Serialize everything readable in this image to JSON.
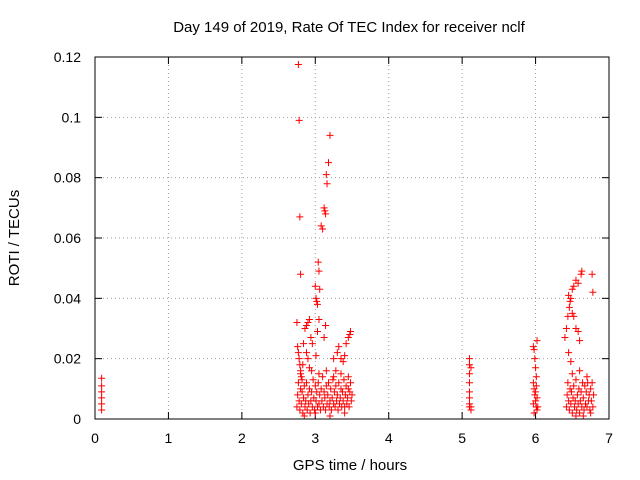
{
  "chart_data": {
    "type": "scatter",
    "title": "Day 149 of 2019, Rate Of TEC Index for receiver nclf",
    "xlabel": "GPS time / hours",
    "ylabel": "ROTI / TECUs",
    "xlim": [
      0,
      7
    ],
    "ylim": [
      0,
      0.12
    ],
    "x_ticks": [
      "0",
      "1",
      "2",
      "3",
      "4",
      "5",
      "6",
      "7"
    ],
    "y_ticks": [
      "0",
      "0.02",
      "0.04",
      "0.06",
      "0.08",
      "0.1",
      "0.12"
    ],
    "grid": true,
    "marker": "+",
    "color": "#ff0000",
    "series": [
      {
        "name": "ROTI",
        "points": [
          [
            0.09,
            0.003
          ],
          [
            0.09,
            0.005
          ],
          [
            0.09,
            0.007
          ],
          [
            0.09,
            0.009
          ],
          [
            0.09,
            0.011
          ],
          [
            0.09,
            0.0135
          ],
          [
            2.77,
            0.1175
          ],
          [
            2.78,
            0.099
          ],
          [
            2.79,
            0.067
          ],
          [
            2.8,
            0.048
          ],
          [
            2.75,
            0.032
          ],
          [
            2.76,
            0.024
          ],
          [
            2.77,
            0.022
          ],
          [
            2.78,
            0.02
          ],
          [
            2.79,
            0.018
          ],
          [
            2.8,
            0.016
          ],
          [
            2.81,
            0.014
          ],
          [
            2.82,
            0.013
          ],
          [
            2.83,
            0.018
          ],
          [
            2.84,
            0.025
          ],
          [
            2.86,
            0.03
          ],
          [
            2.88,
            0.031
          ],
          [
            2.9,
            0.032
          ],
          [
            2.92,
            0.033
          ],
          [
            2.88,
            0.022
          ],
          [
            2.9,
            0.02
          ],
          [
            2.92,
            0.017
          ],
          [
            2.94,
            0.027
          ],
          [
            2.96,
            0.025
          ],
          [
            3.0,
            0.044
          ],
          [
            3.01,
            0.04
          ],
          [
            3.02,
            0.039
          ],
          [
            3.03,
            0.038
          ],
          [
            3.04,
            0.052
          ],
          [
            3.05,
            0.049
          ],
          [
            3.06,
            0.043
          ],
          [
            3.05,
            0.033
          ],
          [
            3.03,
            0.029
          ],
          [
            3.01,
            0.021
          ],
          [
            3.08,
            0.064
          ],
          [
            3.1,
            0.063
          ],
          [
            3.12,
            0.07
          ],
          [
            3.13,
            0.069
          ],
          [
            3.14,
            0.068
          ],
          [
            3.15,
            0.081
          ],
          [
            3.16,
            0.078
          ],
          [
            3.18,
            0.085
          ],
          [
            3.2,
            0.094
          ],
          [
            3.14,
            0.031
          ],
          [
            3.12,
            0.027
          ],
          [
            3.25,
            0.02
          ],
          [
            3.28,
            0.016
          ],
          [
            3.3,
            0.022
          ],
          [
            3.32,
            0.024
          ],
          [
            3.35,
            0.02
          ],
          [
            3.38,
            0.019
          ],
          [
            3.4,
            0.021
          ],
          [
            3.42,
            0.025
          ],
          [
            3.45,
            0.027
          ],
          [
            3.47,
            0.028
          ],
          [
            3.48,
            0.029
          ],
          [
            2.75,
            0.004
          ],
          [
            2.76,
            0.008
          ],
          [
            2.77,
            0.012
          ],
          [
            2.78,
            0.006
          ],
          [
            2.79,
            0.003
          ],
          [
            2.8,
            0.01
          ],
          [
            2.81,
            0.005
          ],
          [
            2.82,
            0.009
          ],
          [
            2.83,
            0.002
          ],
          [
            2.84,
            0.007
          ],
          [
            2.85,
            0.011
          ],
          [
            2.86,
            0.004
          ],
          [
            2.87,
            0.006
          ],
          [
            2.88,
            0.012
          ],
          [
            2.89,
            0.003
          ],
          [
            2.9,
            0.008
          ],
          [
            2.91,
            0.005
          ],
          [
            2.92,
            0.01
          ],
          [
            2.93,
            0.002
          ],
          [
            2.94,
            0.006
          ],
          [
            2.95,
            0.009
          ],
          [
            2.96,
            0.004
          ],
          [
            2.97,
            0.013
          ],
          [
            2.98,
            0.007
          ],
          [
            2.99,
            0.003
          ],
          [
            3.0,
            0.011
          ],
          [
            3.01,
            0.006
          ],
          [
            3.02,
            0.009
          ],
          [
            3.03,
            0.004
          ],
          [
            3.04,
            0.012
          ],
          [
            3.05,
            0.005
          ],
          [
            3.06,
            0.008
          ],
          [
            3.07,
            0.003
          ],
          [
            3.08,
            0.01
          ],
          [
            3.09,
            0.006
          ],
          [
            3.1,
            0.014
          ],
          [
            3.11,
            0.004
          ],
          [
            3.12,
            0.009
          ],
          [
            3.13,
            0.007
          ],
          [
            3.14,
            0.003
          ],
          [
            3.15,
            0.011
          ],
          [
            3.16,
            0.005
          ],
          [
            3.17,
            0.008
          ],
          [
            3.18,
            0.012
          ],
          [
            3.19,
            0.004
          ],
          [
            3.2,
            0.006
          ],
          [
            3.21,
            0.01
          ],
          [
            3.22,
            0.003
          ],
          [
            3.23,
            0.007
          ],
          [
            3.24,
            0.013
          ],
          [
            3.25,
            0.005
          ],
          [
            3.26,
            0.009
          ],
          [
            3.27,
            0.004
          ],
          [
            3.28,
            0.011
          ],
          [
            3.29,
            0.006
          ],
          [
            3.3,
            0.008
          ],
          [
            3.31,
            0.003
          ],
          [
            3.32,
            0.012
          ],
          [
            3.33,
            0.005
          ],
          [
            3.34,
            0.007
          ],
          [
            3.35,
            0.01
          ],
          [
            3.36,
            0.004
          ],
          [
            3.37,
            0.009
          ],
          [
            3.38,
            0.006
          ],
          [
            3.39,
            0.013
          ],
          [
            3.4,
            0.004
          ],
          [
            3.41,
            0.008
          ],
          [
            3.42,
            0.011
          ],
          [
            3.43,
            0.005
          ],
          [
            3.44,
            0.007
          ],
          [
            3.45,
            0.01
          ],
          [
            3.46,
            0.004
          ],
          [
            3.47,
            0.009
          ],
          [
            3.48,
            0.012
          ],
          [
            3.49,
            0.006
          ],
          [
            3.5,
            0.008
          ],
          [
            2.8,
            0.015
          ],
          [
            2.95,
            0.016
          ],
          [
            3.05,
            0.015
          ],
          [
            3.15,
            0.016
          ],
          [
            3.25,
            0.014
          ],
          [
            3.35,
            0.015
          ],
          [
            3.45,
            0.014
          ],
          [
            2.85,
            0.001
          ],
          [
            3.0,
            0.002
          ],
          [
            3.2,
            0.001
          ],
          [
            3.4,
            0.002
          ],
          [
            5.1,
            0.02
          ],
          [
            5.1,
            0.018
          ],
          [
            5.1,
            0.015
          ],
          [
            5.1,
            0.012
          ],
          [
            5.1,
            0.009
          ],
          [
            5.1,
            0.007
          ],
          [
            5.1,
            0.005
          ],
          [
            5.1,
            0.004
          ],
          [
            5.12,
            0.003
          ],
          [
            5.12,
            0.017
          ],
          [
            5.12,
            0.004
          ],
          [
            5.97,
            0.024
          ],
          [
            5.98,
            0.023
          ],
          [
            5.99,
            0.02
          ],
          [
            6.0,
            0.017
          ],
          [
            6.01,
            0.014
          ],
          [
            6.02,
            0.026
          ],
          [
            5.97,
            0.012
          ],
          [
            5.98,
            0.01
          ],
          [
            5.99,
            0.008
          ],
          [
            6.0,
            0.006
          ],
          [
            6.01,
            0.004
          ],
          [
            6.02,
            0.003
          ],
          [
            5.97,
            0.005
          ],
          [
            5.98,
            0.002
          ],
          [
            6.0,
            0.009
          ],
          [
            6.01,
            0.011
          ],
          [
            6.02,
            0.007
          ],
          [
            6.03,
            0.004
          ],
          [
            6.4,
            0.027
          ],
          [
            6.42,
            0.03
          ],
          [
            6.44,
            0.034
          ],
          [
            6.46,
            0.037
          ],
          [
            6.48,
            0.04
          ],
          [
            6.5,
            0.043
          ],
          [
            6.52,
            0.044
          ],
          [
            6.55,
            0.046
          ],
          [
            6.58,
            0.045
          ],
          [
            6.45,
            0.041
          ],
          [
            6.47,
            0.039
          ],
          [
            6.5,
            0.035
          ],
          [
            6.52,
            0.034
          ],
          [
            6.55,
            0.03
          ],
          [
            6.58,
            0.029
          ],
          [
            6.6,
            0.026
          ],
          [
            6.62,
            0.048
          ],
          [
            6.63,
            0.049
          ],
          [
            6.77,
            0.048
          ],
          [
            6.78,
            0.042
          ],
          [
            6.45,
            0.022
          ],
          [
            6.48,
            0.019
          ],
          [
            6.42,
            0.004
          ],
          [
            6.43,
            0.008
          ],
          [
            6.44,
            0.012
          ],
          [
            6.45,
            0.006
          ],
          [
            6.46,
            0.003
          ],
          [
            6.47,
            0.01
          ],
          [
            6.48,
            0.005
          ],
          [
            6.49,
            0.009
          ],
          [
            6.5,
            0.002
          ],
          [
            6.51,
            0.007
          ],
          [
            6.52,
            0.011
          ],
          [
            6.53,
            0.004
          ],
          [
            6.54,
            0.006
          ],
          [
            6.55,
            0.013
          ],
          [
            6.56,
            0.003
          ],
          [
            6.57,
            0.008
          ],
          [
            6.58,
            0.005
          ],
          [
            6.59,
            0.01
          ],
          [
            6.6,
            0.002
          ],
          [
            6.61,
            0.006
          ],
          [
            6.62,
            0.009
          ],
          [
            6.63,
            0.004
          ],
          [
            6.64,
            0.012
          ],
          [
            6.65,
            0.007
          ],
          [
            6.66,
            0.003
          ],
          [
            6.67,
            0.011
          ],
          [
            6.68,
            0.005
          ],
          [
            6.69,
            0.009
          ],
          [
            6.7,
            0.004
          ],
          [
            6.71,
            0.012
          ],
          [
            6.72,
            0.006
          ],
          [
            6.73,
            0.008
          ],
          [
            6.74,
            0.003
          ],
          [
            6.75,
            0.01
          ],
          [
            6.76,
            0.006
          ],
          [
            6.77,
            0.012
          ],
          [
            6.78,
            0.004
          ],
          [
            6.79,
            0.008
          ],
          [
            6.5,
            0.015
          ],
          [
            6.6,
            0.016
          ],
          [
            6.7,
            0.014
          ],
          [
            6.55,
            0.001
          ],
          [
            6.65,
            0.001
          ],
          [
            6.75,
            0.002
          ]
        ]
      }
    ]
  }
}
